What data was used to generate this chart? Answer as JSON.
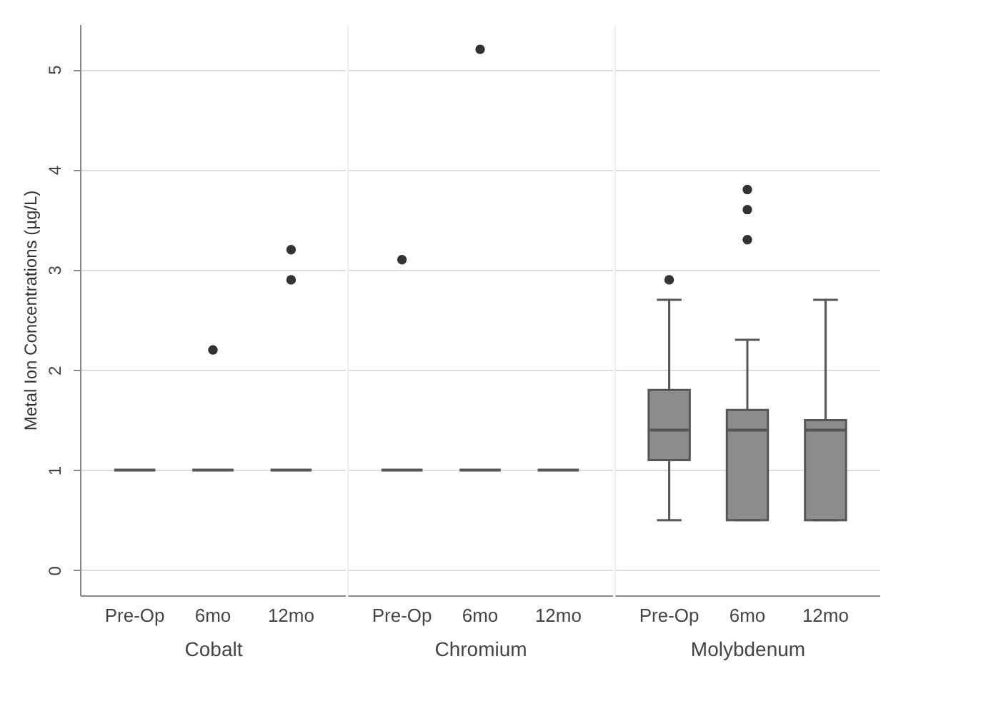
{
  "chart_data": [
    {
      "type": "box",
      "xlabel": "Cobalt",
      "ylabel": "Metal Ion Concentrations (µg/L)",
      "categories": [
        "Pre-Op",
        "6mo",
        "12mo"
      ],
      "ylim": [
        -0.25,
        5.45
      ],
      "yticks": [
        0,
        1,
        2,
        3,
        4,
        5
      ],
      "grid": "y",
      "series": [
        {
          "color": "#8c8c8c",
          "boxes": [
            {
              "low": 1,
              "q1": 1,
              "median": 1,
              "q3": 1,
              "high": 1
            },
            {
              "low": 1,
              "q1": 1,
              "median": 1,
              "q3": 1,
              "high": 1,
              "outliers": [
                2.2
              ]
            },
            {
              "low": 1,
              "q1": 1,
              "median": 1,
              "q3": 1,
              "high": 1,
              "outliers": [
                2.9,
                3.2
              ]
            }
          ]
        }
      ]
    },
    {
      "type": "box",
      "xlabel": "Chromium",
      "categories": [
        "Pre-Op",
        "6mo",
        "12mo"
      ],
      "ylim": [
        -0.25,
        5.45
      ],
      "yticks": [
        0,
        1,
        2,
        3,
        4,
        5
      ],
      "grid": "y",
      "tick_labels": "x",
      "series": [
        {
          "color": "#8c8c8c",
          "boxes": [
            {
              "low": 1,
              "q1": 1,
              "median": 1,
              "q3": 1,
              "high": 1,
              "outliers": [
                3.1
              ]
            },
            {
              "low": 1,
              "q1": 1,
              "median": 1,
              "q3": 1,
              "high": 1,
              "outliers": [
                5.2
              ]
            },
            {
              "low": 1,
              "q1": 1,
              "median": 1,
              "q3": 1,
              "high": 1
            }
          ]
        }
      ]
    },
    {
      "type": "box",
      "xlabel": "Molybdenum",
      "categories": [
        "Pre-Op",
        "6mo",
        "12mo"
      ],
      "ylim": [
        -0.25,
        5.45
      ],
      "yticks": [
        0,
        1,
        2,
        3,
        4,
        5
      ],
      "grid": "y",
      "tick_labels": "x",
      "series": [
        {
          "color": "#8c8c8c",
          "boxes": [
            {
              "low": 0.5,
              "q1": 1.1,
              "median": 1.4,
              "q3": 1.8,
              "high": 2.7,
              "outliers": [
                2.9
              ]
            },
            {
              "low": 0.5,
              "q1": 0.5,
              "median": 1.4,
              "q3": 1.6,
              "high": 2.3,
              "outliers": [
                3.3,
                3.6,
                3.8
              ]
            },
            {
              "low": 0.5,
              "q1": 0.5,
              "median": 1.4,
              "q3": 1.5,
              "high": 2.7
            }
          ]
        }
      ]
    }
  ]
}
